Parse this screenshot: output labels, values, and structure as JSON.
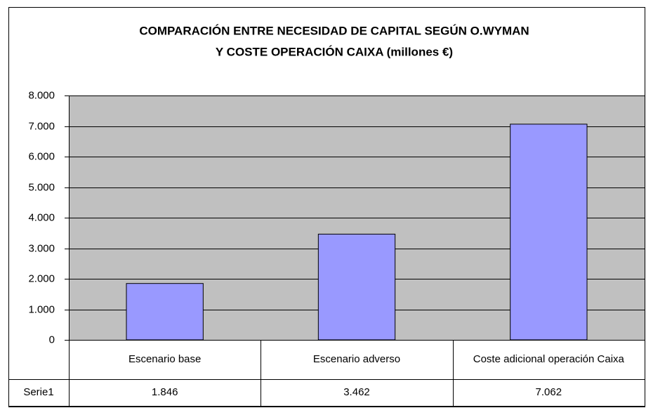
{
  "chart_data": {
    "type": "bar",
    "title": [
      "COMPARACIÓN ENTRE NECESIDAD DE CAPITAL SEGÚN O.WYMAN",
      "Y COSTE OPERACIÓN CAIXA (millones €)"
    ],
    "categories": [
      "Escenario base",
      "Escenario adverso",
      "Coste adicional operación Caixa"
    ],
    "series": [
      {
        "name": "Serie1",
        "color": "#9999ff",
        "values": [
          1846,
          3462,
          7062
        ],
        "value_labels": [
          "1.846",
          "3.462",
          "7.062"
        ]
      }
    ],
    "ylim": [
      0,
      8000
    ],
    "yticks": [
      0,
      {
        "value": 1000,
        "label": "1.000"
      },
      {
        "value": 2000,
        "label": "2.000"
      },
      {
        "value": 3000,
        "label": "3.000"
      },
      {
        "value": 4000,
        "label": "4.000"
      },
      {
        "value": 5000,
        "label": "5.000"
      },
      {
        "value": 6000,
        "label": "6.000"
      },
      {
        "value": 7000,
        "label": "7.000"
      },
      {
        "value": 8000,
        "label": "8.000"
      }
    ],
    "grid": true,
    "plot_background": "#c0c0c0"
  }
}
